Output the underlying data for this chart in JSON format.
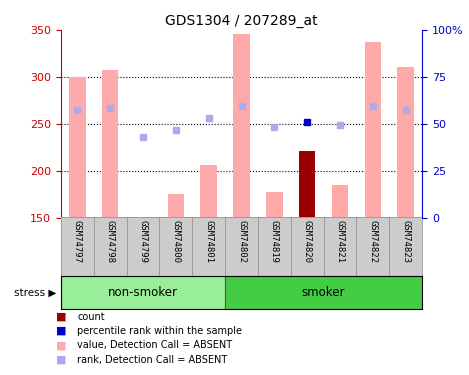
{
  "title": "GDS1304 / 207289_at",
  "samples": [
    "GSM74797",
    "GSM74798",
    "GSM74799",
    "GSM74800",
    "GSM74801",
    "GSM74802",
    "GSM74819",
    "GSM74820",
    "GSM74821",
    "GSM74822",
    "GSM74823"
  ],
  "groups": {
    "non-smoker": [
      "GSM74797",
      "GSM74798",
      "GSM74799",
      "GSM74800",
      "GSM74801"
    ],
    "smoker": [
      "GSM74802",
      "GSM74819",
      "GSM74820",
      "GSM74821",
      "GSM74822",
      "GSM74823"
    ]
  },
  "pink_bar_values": [
    300,
    307,
    148,
    175,
    206,
    346,
    177,
    null,
    185,
    337,
    311
  ],
  "dark_red_bar_values": [
    null,
    null,
    null,
    null,
    null,
    null,
    null,
    221,
    null,
    null,
    null
  ],
  "blue_dot_values": [
    265,
    267,
    236,
    243,
    256,
    269,
    247,
    252,
    249,
    269,
    265
  ],
  "has_present_call": [
    false,
    false,
    false,
    false,
    false,
    false,
    false,
    true,
    false,
    false,
    false
  ],
  "ylim_left": [
    150,
    350
  ],
  "ylim_right": [
    0,
    100
  ],
  "yticks_left": [
    150,
    200,
    250,
    300,
    350
  ],
  "yticks_right": [
    0,
    25,
    50,
    75,
    100
  ],
  "ytick_labels_right": [
    "0",
    "25",
    "50",
    "75",
    "100%"
  ],
  "left_axis_color": "#cc0000",
  "right_axis_color": "#0000cc",
  "pink_bar_color": "#ffaaaa",
  "dark_red_color": "#990000",
  "blue_dot_color": "#0000cc",
  "light_blue_dot_color": "#aaaaee",
  "grid_color": "#000000",
  "bg_color": "#ffffff",
  "label_bg_color": "#cccccc",
  "nonsmoker_bg": "#99ee99",
  "smoker_bg": "#44cc44",
  "stress_label": "stress",
  "nonsmoker_label": "non-smoker",
  "smoker_label": "smoker",
  "legend_items": [
    {
      "color": "#990000",
      "label": "count"
    },
    {
      "color": "#0000cc",
      "label": "percentile rank within the sample"
    },
    {
      "color": "#ffaaaa",
      "label": "value, Detection Call = ABSENT"
    },
    {
      "color": "#aaaaee",
      "label": "rank, Detection Call = ABSENT"
    }
  ]
}
